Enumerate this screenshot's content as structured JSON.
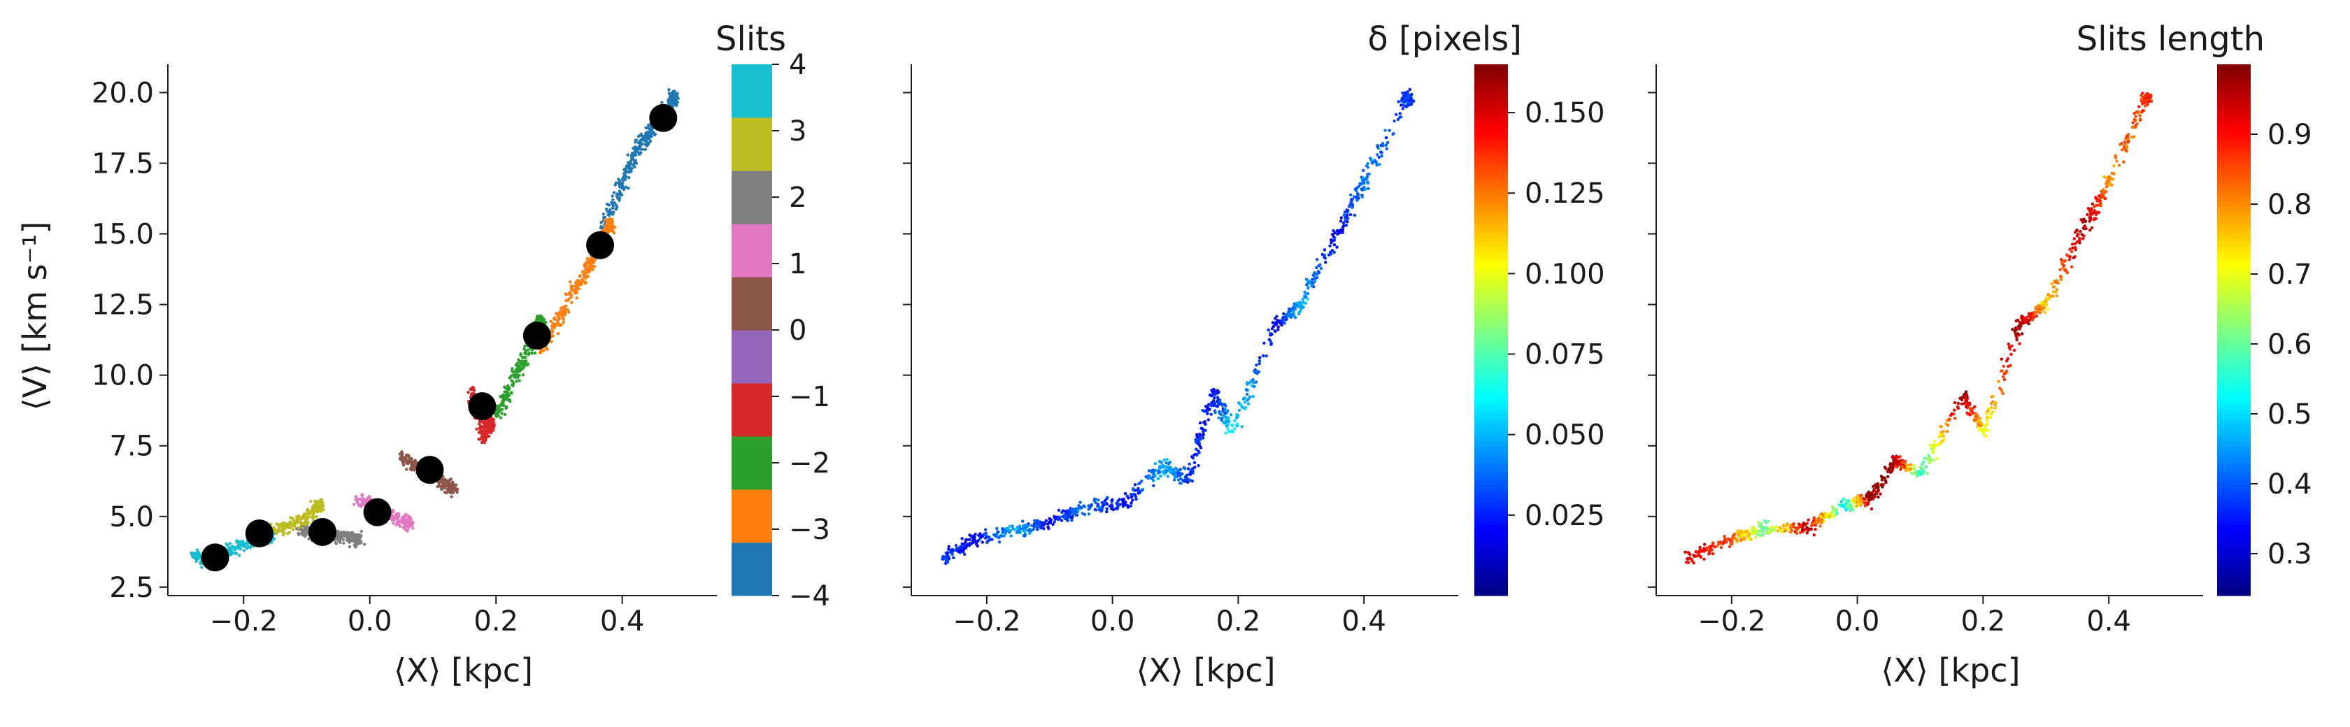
{
  "figure": {
    "background": "#ffffff"
  },
  "chart_data": [
    {
      "type": "scatter",
      "panel": "left",
      "xlabel": "⟨X⟩ [kpc]",
      "ylabel": "⟨V⟩ [km s⁻¹]",
      "xlim": [
        -0.32,
        0.55
      ],
      "ylim": [
        2.2,
        21.0
      ],
      "xticks": [
        -0.2,
        0.0,
        0.2,
        0.4
      ],
      "xtick_labels": [
        "−0.2",
        "0.0",
        "0.2",
        "0.4"
      ],
      "yticks": [
        2.5,
        5.0,
        7.5,
        10.0,
        12.5,
        15.0,
        17.5,
        20.0
      ],
      "ytick_labels": [
        "2.5",
        "5.0",
        "7.5",
        "10.0",
        "12.5",
        "15.0",
        "17.5",
        "20.0"
      ],
      "grid": false,
      "colorbar": {
        "title": "Slits",
        "range": [
          -4,
          4
        ],
        "ticks": [
          -4,
          -3,
          -2,
          -1,
          0,
          1,
          2,
          3,
          4
        ],
        "tick_labels": [
          "−4",
          "−3",
          "−2",
          "−1",
          "0",
          "1",
          "2",
          "3",
          "4"
        ],
        "colors": [
          "#1f77b4",
          "#ff7f0e",
          "#2ca02c",
          "#d62728",
          "#9467bd",
          "#8c564b",
          "#e377c2",
          "#7f7f7f",
          "#bcbd22",
          "#17becf"
        ]
      },
      "series": [
        {
          "slit": -4,
          "color": "#1f77b4",
          "points": [
            [
              0.37,
              15.2
            ],
            [
              0.4,
              16.8
            ],
            [
              0.42,
              17.8
            ],
            [
              0.44,
              18.5
            ],
            [
              0.46,
              19.1
            ],
            [
              0.48,
              19.8
            ]
          ]
        },
        {
          "slit": -3,
          "color": "#ff7f0e",
          "points": [
            [
              0.27,
              10.8
            ],
            [
              0.3,
              12.0
            ],
            [
              0.33,
              13.2
            ],
            [
              0.35,
              14.0
            ],
            [
              0.365,
              14.6
            ],
            [
              0.38,
              15.3
            ]
          ]
        },
        {
          "slit": -2,
          "color": "#2ca02c",
          "points": [
            [
              0.2,
              8.6
            ],
            [
              0.22,
              9.5
            ],
            [
              0.24,
              10.4
            ],
            [
              0.26,
              11.3
            ],
            [
              0.27,
              11.9
            ]
          ]
        },
        {
          "slit": -1,
          "color": "#d62728",
          "points": [
            [
              0.16,
              9.5
            ],
            [
              0.17,
              8.6
            ],
            [
              0.175,
              8.9
            ],
            [
              0.18,
              7.8
            ],
            [
              0.19,
              8.3
            ]
          ]
        },
        {
          "slit": 0,
          "color": "#8c564b",
          "points": [
            [
              0.05,
              7.1
            ],
            [
              0.07,
              6.8
            ],
            [
              0.09,
              6.7
            ],
            [
              0.11,
              6.3
            ],
            [
              0.13,
              6.0
            ]
          ]
        },
        {
          "slit": 1,
          "color": "#e377c2",
          "points": [
            [
              -0.02,
              5.6
            ],
            [
              0.0,
              5.5
            ],
            [
              0.01,
              5.2
            ],
            [
              0.03,
              5.0
            ],
            [
              0.06,
              4.8
            ]
          ]
        },
        {
          "slit": 2,
          "color": "#7f7f7f",
          "points": [
            [
              -0.11,
              4.6
            ],
            [
              -0.09,
              4.4
            ],
            [
              -0.07,
              4.4
            ],
            [
              -0.05,
              4.3
            ],
            [
              -0.02,
              4.2
            ]
          ]
        },
        {
          "slit": 3,
          "color": "#bcbd22",
          "points": [
            [
              -0.19,
              4.2
            ],
            [
              -0.16,
              4.5
            ],
            [
              -0.13,
              4.7
            ],
            [
              -0.1,
              4.9
            ],
            [
              -0.08,
              5.4
            ]
          ]
        },
        {
          "slit": 4,
          "color": "#17becf",
          "points": [
            [
              -0.28,
              3.6
            ],
            [
              -0.25,
              3.4
            ],
            [
              -0.22,
              3.8
            ],
            [
              -0.19,
              4.1
            ],
            [
              -0.16,
              4.3
            ]
          ]
        }
      ],
      "markers": {
        "color": "#000000",
        "points": [
          [
            -0.245,
            3.55
          ],
          [
            -0.175,
            4.4
          ],
          [
            -0.075,
            4.45
          ],
          [
            0.012,
            5.15
          ],
          [
            0.095,
            6.65
          ],
          [
            0.178,
            8.9
          ],
          [
            0.265,
            11.4
          ],
          [
            0.365,
            14.6
          ],
          [
            0.465,
            19.1
          ]
        ]
      }
    },
    {
      "type": "scatter",
      "panel": "middle",
      "xlabel": "⟨X⟩ [kpc]",
      "xlim": [
        -0.32,
        0.55
      ],
      "ylim": [
        2.2,
        21.0
      ],
      "xticks": [
        -0.2,
        0.0,
        0.2,
        0.4
      ],
      "xtick_labels": [
        "−0.2",
        "0.0",
        "0.2",
        "0.4"
      ],
      "yticks": [
        2.5,
        5.0,
        7.5,
        10.0,
        12.5,
        15.0,
        17.5,
        20.0
      ],
      "grid": false,
      "colorbar": {
        "title": "δ [pixels]",
        "colormap": "jet",
        "range": [
          0.0,
          0.165
        ],
        "ticks": [
          0.025,
          0.05,
          0.075,
          0.1,
          0.125,
          0.15
        ],
        "tick_labels": [
          "0.025",
          "0.050",
          "0.075",
          "0.100",
          "0.125",
          "0.150"
        ]
      },
      "points": [
        [
          -0.27,
          3.5,
          0.03
        ],
        [
          -0.22,
          4.2,
          0.02
        ],
        [
          -0.15,
          4.5,
          0.05
        ],
        [
          -0.1,
          4.8,
          0.02
        ],
        [
          -0.05,
          5.3,
          0.04
        ],
        [
          0.02,
          5.5,
          0.02
        ],
        [
          0.08,
          6.8,
          0.05
        ],
        [
          0.12,
          6.3,
          0.03
        ],
        [
          0.16,
          9.4,
          0.02
        ],
        [
          0.19,
          8.0,
          0.06
        ],
        [
          0.26,
          11.8,
          0.02
        ],
        [
          0.3,
          12.5,
          0.05
        ],
        [
          0.36,
          15.1,
          0.02
        ],
        [
          0.4,
          16.8,
          0.04
        ],
        [
          0.47,
          19.8,
          0.03
        ]
      ]
    },
    {
      "type": "scatter",
      "panel": "right",
      "xlabel": "⟨X⟩ [kpc]",
      "xlim": [
        -0.32,
        0.55
      ],
      "ylim": [
        2.2,
        21.0
      ],
      "xticks": [
        -0.2,
        0.0,
        0.2,
        0.4
      ],
      "xtick_labels": [
        "−0.2",
        "0.0",
        "0.2",
        "0.4"
      ],
      "yticks": [
        2.5,
        5.0,
        7.5,
        10.0,
        12.5,
        15.0,
        17.5,
        20.0
      ],
      "grid": false,
      "colorbar": {
        "title": "Slits length",
        "colormap": "jet",
        "range": [
          0.24,
          1.0
        ],
        "ticks": [
          0.3,
          0.4,
          0.5,
          0.6,
          0.7,
          0.8,
          0.9
        ],
        "tick_labels": [
          "0.3",
          "0.4",
          "0.5",
          "0.6",
          "0.7",
          "0.8",
          "0.9"
        ]
      },
      "points": [
        [
          -0.27,
          3.5,
          0.92
        ],
        [
          -0.2,
          4.2,
          0.85
        ],
        [
          -0.15,
          4.6,
          0.6
        ],
        [
          -0.08,
          4.6,
          0.95
        ],
        [
          -0.02,
          5.4,
          0.52
        ],
        [
          0.02,
          5.6,
          0.98
        ],
        [
          0.06,
          7.0,
          0.97
        ],
        [
          0.1,
          6.5,
          0.55
        ],
        [
          0.17,
          9.3,
          0.99
        ],
        [
          0.2,
          8.0,
          0.7
        ],
        [
          0.26,
          11.8,
          0.98
        ],
        [
          0.3,
          12.5,
          0.75
        ],
        [
          0.36,
          15.2,
          0.97
        ],
        [
          0.4,
          16.8,
          0.8
        ],
        [
          0.46,
          19.8,
          0.88
        ]
      ]
    }
  ]
}
